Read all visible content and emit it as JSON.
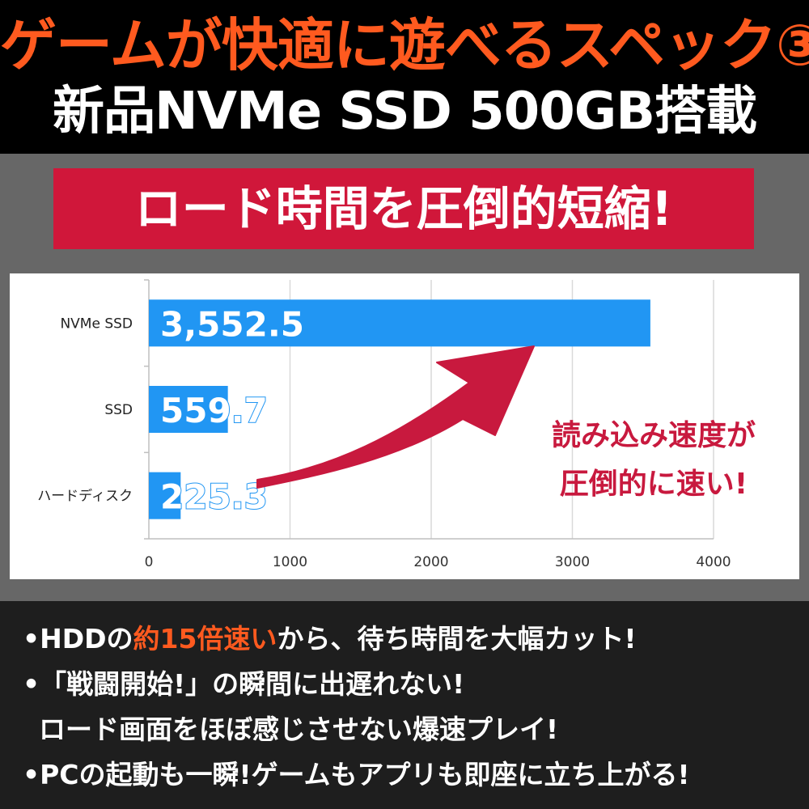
{
  "header": {
    "title_line1": "ゲームが快適に遊べるスペック③",
    "title_line2": "新品NVMe SSD 500GB搭載"
  },
  "banner": {
    "text": "ロード時間を圧倒的短縮!"
  },
  "callout": {
    "line1": "読み込み速度が",
    "line2": "圧倒的に速い!"
  },
  "chart_data": {
    "type": "bar",
    "orientation": "horizontal",
    "categories": [
      "NVMe SSD",
      "SSD",
      "ハードディスク"
    ],
    "values": [
      3552.5,
      559.7,
      225.3
    ],
    "value_labels": [
      "3,552.5",
      "559.7",
      "225.3"
    ],
    "xlim": [
      0,
      4000
    ],
    "xticks": [
      0,
      1000,
      2000,
      3000,
      4000
    ],
    "xtick_labels": [
      "0",
      "1000",
      "2000",
      "3000",
      "4000"
    ],
    "grid": true,
    "bar_color": "#2196f3"
  },
  "bullets": {
    "b1_pre": "•HDDの",
    "b1_hl": "約15倍速い",
    "b1_post": "から、待ち時間を大幅カット!",
    "b2": "•「戦闘開始!」の瞬間に出遅れない!",
    "b3": "ロード画面をほぼ感じさせない爆速プレイ!",
    "b4": "•PCの起動も一瞬!ゲームもアプリも即座に立ち上がる!"
  },
  "colors": {
    "accent_orange": "#ff5a1f",
    "banner_red": "#d0173a",
    "arrow_red": "#c8193e",
    "bar_blue": "#2196f3"
  }
}
